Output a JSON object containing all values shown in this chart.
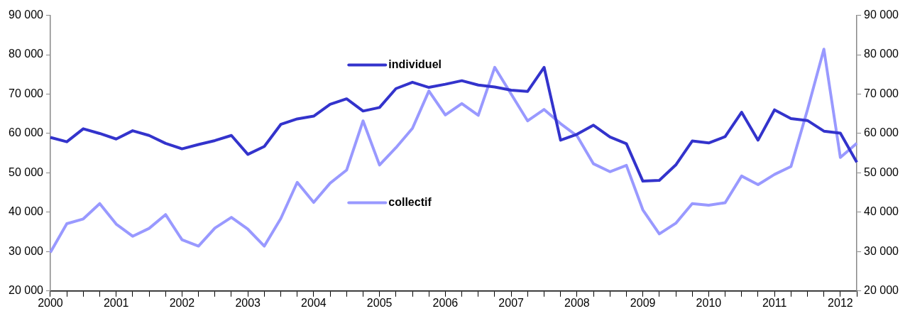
{
  "chart_data": {
    "type": "line",
    "categories": [
      "2000",
      null,
      null,
      null,
      "2001",
      null,
      null,
      null,
      "2002",
      null,
      null,
      null,
      "2003",
      null,
      null,
      null,
      "2004",
      null,
      null,
      null,
      "2005",
      null,
      null,
      null,
      "2006",
      null,
      null,
      null,
      "2007",
      null,
      null,
      null,
      "2008",
      null,
      null,
      null,
      "2009",
      null,
      null,
      null,
      "2010",
      null,
      null,
      null,
      "2011",
      null,
      null,
      null,
      "2012",
      null
    ],
    "series": [
      {
        "name": "individuel",
        "color": "#3333cc",
        "values": [
          59000,
          57900,
          61200,
          60000,
          58600,
          60700,
          59500,
          57500,
          56100,
          57200,
          58200,
          59500,
          54700,
          56700,
          62300,
          63700,
          64400,
          67400,
          68800,
          65700,
          66600,
          71400,
          73000,
          71700,
          72500,
          73400,
          72300,
          71800,
          71000,
          70700,
          76800,
          58300,
          59800,
          62100,
          59100,
          57400,
          47900,
          48100,
          52000,
          58100,
          57600,
          59200,
          65400,
          58300,
          66000,
          63800,
          63300,
          60600,
          60100,
          52700
        ]
      },
      {
        "name": "collectif",
        "color": "#9999ff",
        "values": [
          29800,
          37100,
          38300,
          42200,
          37000,
          33900,
          35900,
          39400,
          33000,
          31400,
          36000,
          38700,
          35700,
          31400,
          38400,
          47600,
          42500,
          47400,
          50700,
          63200,
          52000,
          56400,
          61300,
          70800,
          64700,
          67600,
          64600,
          76800,
          70000,
          63200,
          66100,
          62500,
          59400,
          52300,
          50300,
          51900,
          40600,
          34500,
          37200,
          42200,
          41800,
          42400,
          49200,
          47000,
          49600,
          51600,
          66000,
          81400,
          53900,
          57500
        ]
      }
    ],
    "ylim": [
      20000,
      90000
    ],
    "yticks": [
      {
        "value": 20000,
        "label": "20 000"
      },
      {
        "value": 30000,
        "label": "30 000"
      },
      {
        "value": 40000,
        "label": "40 000"
      },
      {
        "value": 50000,
        "label": "50 000"
      },
      {
        "value": 60000,
        "label": "60 000"
      },
      {
        "value": 70000,
        "label": "70 000"
      },
      {
        "value": 80000,
        "label": "80 000"
      },
      {
        "value": 90000,
        "label": "90 000"
      }
    ],
    "y2lim": [
      20000,
      90000
    ],
    "y2ticks": [
      {
        "value": 20000,
        "label": "20 000"
      },
      {
        "value": 30000,
        "label": "30 000"
      },
      {
        "value": 40000,
        "label": "40 000"
      },
      {
        "value": 50000,
        "label": "50 000"
      },
      {
        "value": 60000,
        "label": "60 000"
      },
      {
        "value": 70000,
        "label": "70 000"
      },
      {
        "value": 80000,
        "label": "80 000"
      },
      {
        "value": 90000,
        "label": "90 000"
      }
    ],
    "grid": false,
    "legend": "top",
    "marker": "none",
    "line_style": "solid"
  }
}
